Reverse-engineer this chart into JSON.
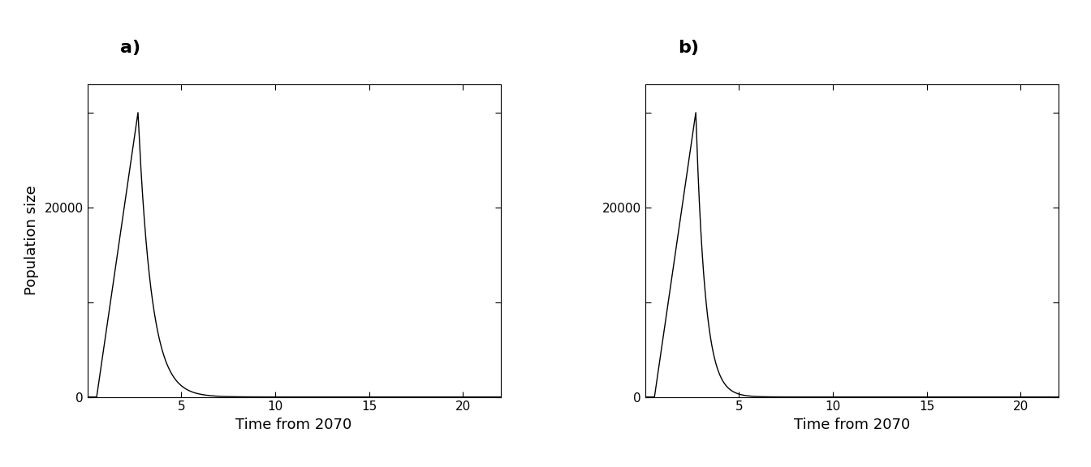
{
  "panel_a_label": "a)",
  "panel_b_label": "b)",
  "xlabel": "Time from 2070",
  "ylabel": "Population size",
  "xlim": [
    0,
    22
  ],
  "ylim": [
    0,
    33000
  ],
  "peak_time_a": 2.7,
  "peak_value_a": 30000,
  "peak_time_b": 2.7,
  "peak_value_b": 30000,
  "rise_start_a": 0.5,
  "rise_start_b": 0.5,
  "decay_rate_a": 1.4,
  "decay_rate_b": 2.0,
  "line_color": "#000000",
  "background_color": "#ffffff",
  "label_fontsize": 13,
  "tick_fontsize": 11,
  "panel_label_fontsize": 16,
  "xticks": [
    5,
    10,
    15,
    20
  ],
  "yticks": [
    0,
    10000,
    20000,
    30000
  ],
  "ytick_labels": [
    "0",
    "",
    "20000",
    ""
  ]
}
